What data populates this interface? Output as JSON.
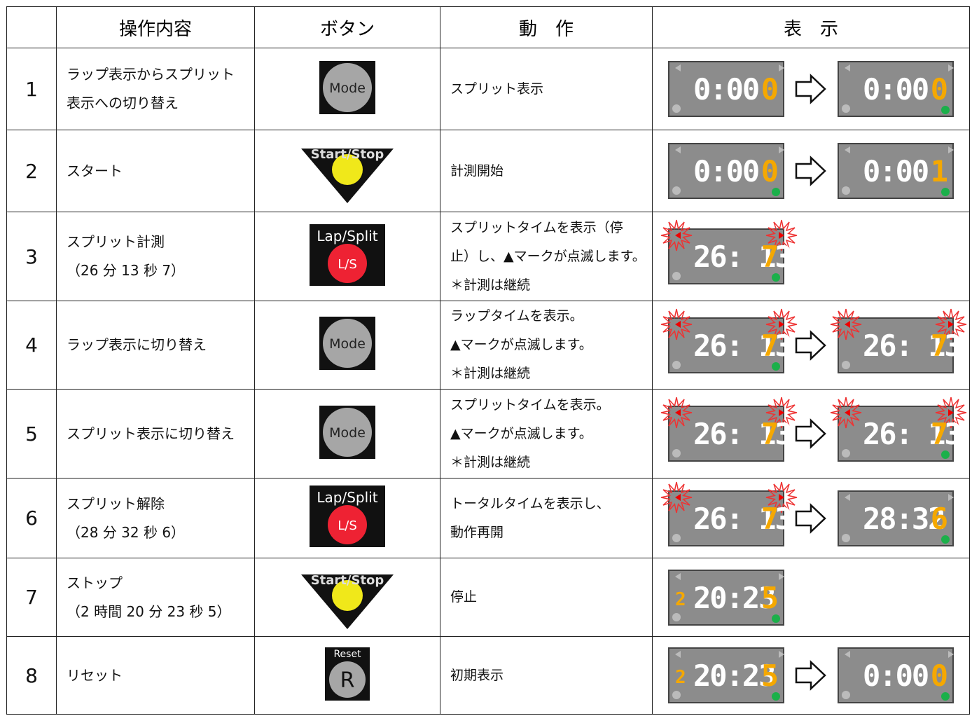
{
  "header": [
    "操作内容",
    "ボタン",
    "動　作",
    "表　示"
  ],
  "rows": [
    {
      "no": "1",
      "operation": [
        "ラップ表示からスプリット",
        "表示への切り替え"
      ],
      "button": {
        "kind": "mode",
        "labels": [
          "Mode"
        ]
      },
      "action": [
        "スプリット表示"
      ],
      "displays": [
        {
          "lead": "",
          "time": "0:00",
          "tenth": "0",
          "blink": false,
          "dot": false
        },
        {
          "lead": "",
          "time": "0:00",
          "tenth": "0",
          "blink": false,
          "dot": true
        }
      ]
    },
    {
      "no": "2",
      "operation": [
        "スタート"
      ],
      "button": {
        "kind": "startstop",
        "labels": [
          "Start/Stop"
        ]
      },
      "action": [
        "計測開始"
      ],
      "displays": [
        {
          "lead": "",
          "time": "0:00",
          "tenth": "0",
          "blink": false,
          "dot": true
        },
        {
          "lead": "",
          "time": "0:00",
          "tenth": "1",
          "blink": false,
          "dot": true
        }
      ]
    },
    {
      "no": "3",
      "operation": [
        "スプリット計測",
        "（26 分 13 秒 7）"
      ],
      "button": {
        "kind": "lapsplit",
        "labels": [
          "Lap/Split",
          "L/S"
        ]
      },
      "action": [
        "スプリットタイムを表示（停",
        "止）し、▲マークが点滅します。",
        "＊計測は継続"
      ],
      "displays": [
        {
          "lead": "",
          "time": "26: 13",
          "tenth": "7",
          "blink": true,
          "dot": true
        }
      ]
    },
    {
      "no": "4",
      "operation": [
        "ラップ表示に切り替え"
      ],
      "button": {
        "kind": "mode",
        "labels": [
          "Mode"
        ]
      },
      "action": [
        "ラップタイムを表示。",
        "▲マークが点滅します。",
        "＊計測は継続"
      ],
      "displays": [
        {
          "lead": "",
          "time": "26: 13",
          "tenth": "7",
          "blink": true,
          "dot": true
        },
        {
          "lead": "",
          "time": "26: 13",
          "tenth": "7",
          "blink": true,
          "dot": false
        }
      ]
    },
    {
      "no": "5",
      "operation": [
        "スプリット表示に切り替え"
      ],
      "button": {
        "kind": "mode",
        "labels": [
          "Mode"
        ]
      },
      "action": [
        "スプリットタイムを表示。",
        "▲マークが点滅します。",
        "＊計測は継続"
      ],
      "displays": [
        {
          "lead": "",
          "time": "26: 13",
          "tenth": "7",
          "blink": true,
          "dot": false
        },
        {
          "lead": "",
          "time": "26: 13",
          "tenth": "7",
          "blink": true,
          "dot": true
        }
      ]
    },
    {
      "no": "6",
      "operation": [
        "スプリット解除",
        "（28 分 32 秒 6）"
      ],
      "button": {
        "kind": "lapsplit",
        "labels": [
          "Lap/Split",
          "L/S"
        ]
      },
      "action": [
        "トータルタイムを表示し、",
        "動作再開"
      ],
      "displays": [
        {
          "lead": "",
          "time": "26: 13",
          "tenth": "7",
          "blink": true,
          "dot": false
        },
        {
          "lead": "",
          "time": "28:32",
          "tenth": "6",
          "blink": false,
          "dot": true
        }
      ]
    },
    {
      "no": "7",
      "operation": [
        "ストップ",
        "（2 時間 20 分 23 秒 5）"
      ],
      "button": {
        "kind": "startstop",
        "labels": [
          "Start/Stop"
        ]
      },
      "action": [
        "停止"
      ],
      "displays": [
        {
          "lead": "2",
          "time": "20:23",
          "tenth": "5",
          "blink": false,
          "dot": true
        }
      ]
    },
    {
      "no": "8",
      "operation": [
        "リセット"
      ],
      "button": {
        "kind": "reset",
        "labels": [
          "Reset",
          "R"
        ]
      },
      "action": [
        "初期表示"
      ],
      "displays": [
        {
          "lead": "2",
          "time": "20:23",
          "tenth": "5",
          "blink": false,
          "dot": true
        },
        {
          "lead": "",
          "time": "0:00",
          "tenth": "0",
          "blink": false,
          "dot": true
        }
      ]
    }
  ]
}
